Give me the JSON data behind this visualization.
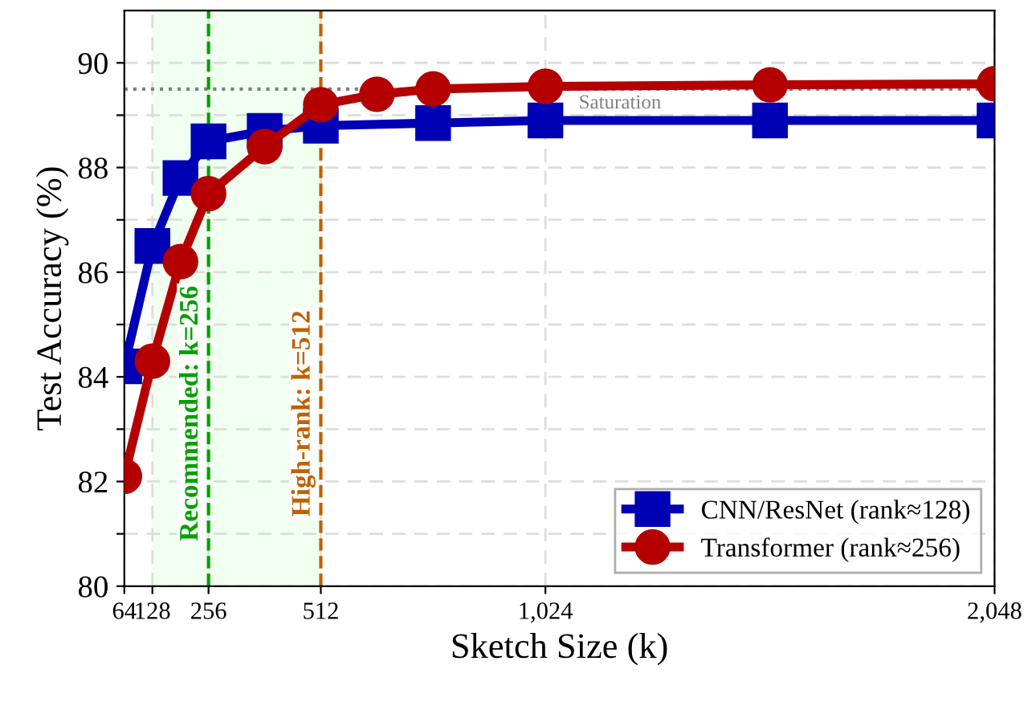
{
  "chart_data": {
    "type": "line",
    "xlabel": "Sketch Size (k)",
    "ylabel": "Test Accuracy (%)",
    "x": [
      64,
      128,
      192,
      256,
      384,
      512,
      640,
      768,
      1024,
      1536,
      2048
    ],
    "series": [
      {
        "name": "CNN/ResNet (rank≈128)",
        "color": "#0000b4",
        "marker": "square",
        "values": [
          84.2,
          86.5,
          87.8,
          88.5,
          88.7,
          88.8,
          null,
          88.85,
          88.9,
          88.9,
          88.9
        ]
      },
      {
        "name": "Transformer (rank≈256)",
        "color": "#b40000",
        "marker": "circle",
        "values": [
          82.1,
          84.3,
          86.2,
          87.5,
          88.4,
          89.2,
          89.4,
          89.5,
          89.55,
          89.58,
          89.6
        ]
      }
    ],
    "xlim": [
      64,
      2048
    ],
    "xticks": [
      {
        "value": 64,
        "label": "64"
      },
      {
        "value": 128,
        "label": "128"
      },
      {
        "value": 256,
        "label": "256"
      },
      {
        "value": 512,
        "label": "512"
      },
      {
        "value": 1024,
        "label": "1,024"
      },
      {
        "value": 2048,
        "label": "2,048"
      }
    ],
    "ylim": [
      80,
      91
    ],
    "yticks": [
      80,
      {
        "value": 81,
        "label": null
      },
      82,
      {
        "value": 83,
        "label": null
      },
      84,
      {
        "value": 85,
        "label": null
      },
      86,
      {
        "value": 87,
        "label": null
      },
      88,
      {
        "value": 89,
        "label": null
      },
      90
    ],
    "ref_lines": [
      {
        "axis": "y",
        "value": 89.5,
        "label": "Saturation",
        "color": "#808080",
        "line_style": "dotted"
      },
      {
        "axis": "x",
        "value": 256,
        "label": "Recommended: k=256",
        "color": "#00a000",
        "line_style": "dashed"
      },
      {
        "axis": "x",
        "value": 512,
        "label": "High-rank: k=512",
        "color": "#c06000",
        "line_style": "dashed"
      }
    ],
    "bands": [
      {
        "axis": "x",
        "from": 128,
        "to": 512,
        "color": "#f0fff0"
      }
    ],
    "grid": true,
    "legend": "lower right",
    "line_style": "solid"
  }
}
